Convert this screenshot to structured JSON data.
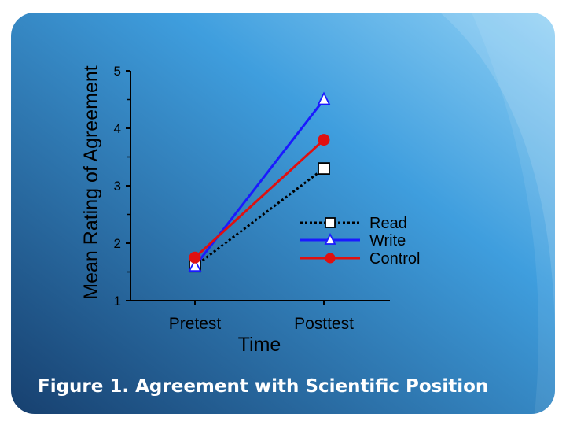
{
  "caption": "Figure 1. Agreement with Scientific Position",
  "chart_data": {
    "type": "line",
    "categories": [
      "Pretest",
      "Posttest"
    ],
    "xlabel": "Time",
    "ylabel": "Mean Rating of Agreement",
    "ylim": [
      1,
      5
    ],
    "yticks": [
      "1",
      "2",
      "3",
      "4",
      "5"
    ],
    "legend_position": "right-middle",
    "series": [
      {
        "name": "Read",
        "values": [
          1.6,
          3.3
        ],
        "color": "#000000",
        "line_style": "dotted",
        "marker": "square",
        "marker_fill": "#ffffff"
      },
      {
        "name": "Write",
        "values": [
          1.6,
          4.5
        ],
        "color": "#1a1aff",
        "line_style": "solid",
        "marker": "triangle",
        "marker_fill": "#ffffff"
      },
      {
        "name": "Control",
        "values": [
          1.75,
          3.8
        ],
        "color": "#e01010",
        "line_style": "solid",
        "marker": "circle",
        "marker_fill": "#e01010"
      }
    ]
  },
  "colors": {
    "background_dark": "#1a4e86",
    "background_light": "#5ab4ee",
    "border": "#ffffff"
  }
}
